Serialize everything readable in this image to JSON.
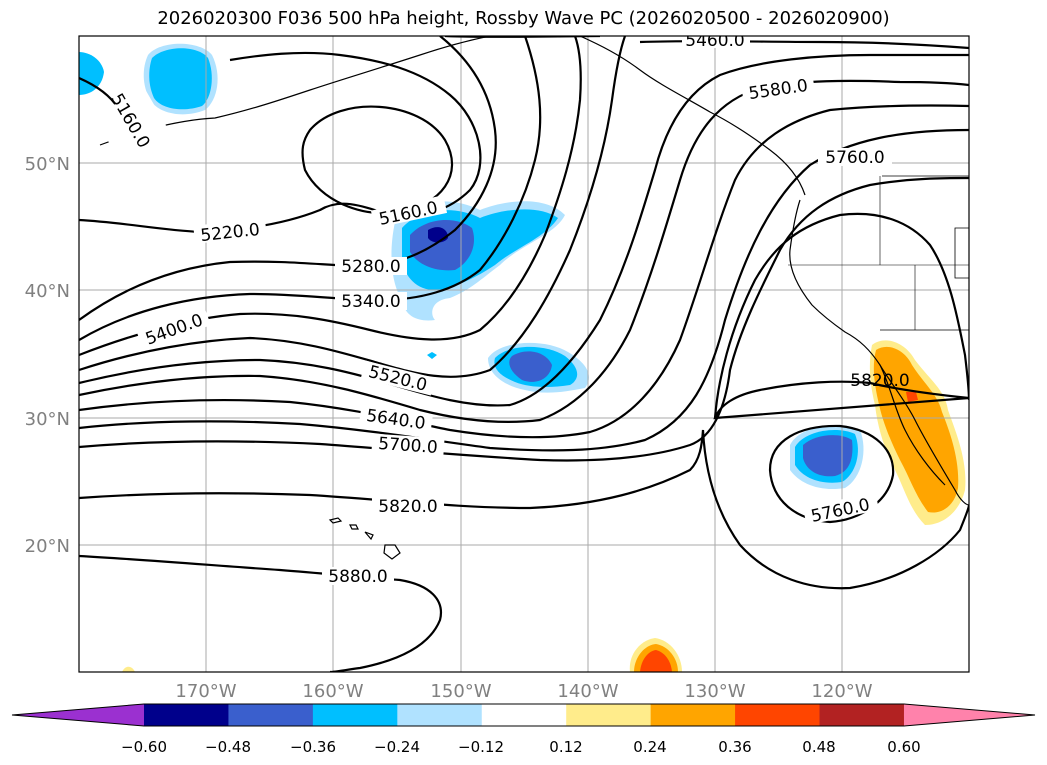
{
  "title": "2026020300 F036 500 hPa height, Rossby Wave PC (2026020500 - 2026020900)",
  "lat_labels": [
    "50°N",
    "40°N",
    "30°N",
    "20°N"
  ],
  "lon_labels": [
    "170°W",
    "160°W",
    "150°W",
    "140°W",
    "130°W",
    "120°W"
  ],
  "contour_labels": [
    "5160.0",
    "5460.0",
    "5580.0",
    "5760.0",
    "5160.0",
    "5220.0",
    "5280.0",
    "5340.0",
    "5400.0",
    "5520.0",
    "5640.0",
    "5700.0",
    "5820.0",
    "5880.0",
    "5820.0",
    "5760.0"
  ],
  "colorbar": {
    "ticks": [
      "−0.60",
      "−0.48",
      "−0.36",
      "−0.24",
      "−0.12",
      "0.12",
      "0.24",
      "0.36",
      "0.48",
      "0.60"
    ],
    "colors": [
      "#9b30d0",
      "#00008b",
      "#3a5fcd",
      "#00bfff",
      "#b0e2ff",
      "#ffffff",
      "#ffec8b",
      "#ffa500",
      "#ff4500",
      "#b22222",
      "#ff82ab"
    ]
  },
  "map_extent": {
    "lon": [
      -180,
      -110
    ],
    "lat": [
      10,
      60
    ]
  }
}
